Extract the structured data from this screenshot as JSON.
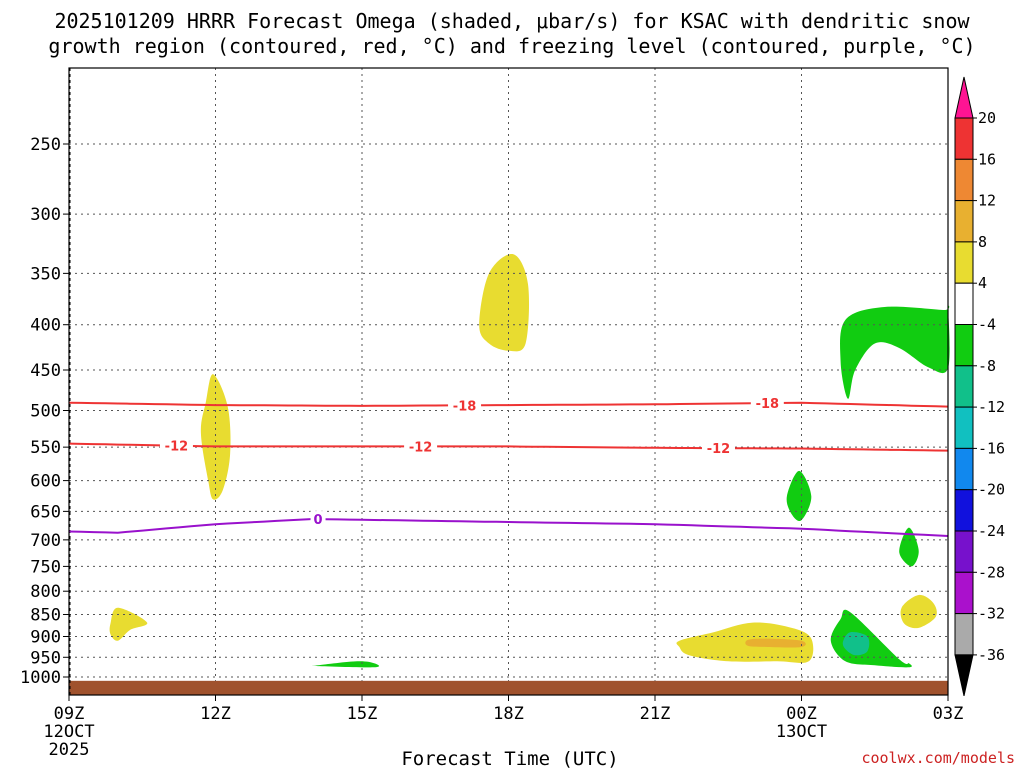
{
  "chart_data": {
    "type": "heatmap",
    "title_line1": "2025101209 HRRR Forecast Omega (shaded, μbar/s) for KSAC with dendritic snow",
    "title_line2": "growth region (contoured, red, °C) and freezing level (contoured, purple, °C)",
    "xlabel": "Forecast Time (UTC)",
    "ylabel": "",
    "credit": "coolwx.com/models",
    "x_range_hours": [
      0,
      18
    ],
    "y_range_hPa": [
      1030,
      200
    ],
    "y_scale": "log",
    "x_ticks": [
      {
        "hour": 0,
        "label": "09Z",
        "sub1": "12OCT",
        "sub2": "2025"
      },
      {
        "hour": 3,
        "label": "12Z",
        "sub1": "",
        "sub2": ""
      },
      {
        "hour": 6,
        "label": "15Z",
        "sub1": "",
        "sub2": ""
      },
      {
        "hour": 9,
        "label": "18Z",
        "sub1": "",
        "sub2": ""
      },
      {
        "hour": 12,
        "label": "21Z",
        "sub1": "",
        "sub2": ""
      },
      {
        "hour": 15,
        "label": "00Z",
        "sub1": "13OCT",
        "sub2": ""
      },
      {
        "hour": 18,
        "label": "03Z",
        "sub1": "",
        "sub2": ""
      }
    ],
    "y_ticks": [
      250,
      300,
      350,
      400,
      450,
      500,
      550,
      600,
      650,
      700,
      750,
      800,
      850,
      900,
      950,
      1000
    ],
    "surface_pressure_hPa": 1010,
    "colorbar": {
      "levels": [
        "20",
        "16",
        "12",
        "8",
        "4",
        "-4",
        "-8",
        "-12",
        "-16",
        "-20",
        "-24",
        "-28",
        "-32",
        "-36"
      ],
      "colors": [
        "#ff1493",
        "#ee3333",
        "#ee8833",
        "#e8b030",
        "#e8dc30",
        "#ffffff",
        "#11cc11",
        "#11c08a",
        "#11c0c0",
        "#1188ee",
        "#1111dd",
        "#7711cc",
        "#aa11cc",
        "#aaaaaa",
        "#000000"
      ]
    },
    "omega_regions": [
      {
        "name": "upper-yellow-cell",
        "value_range": "4 to 8",
        "color": "#e8dc30",
        "points": [
          [
            8.4,
            400
          ],
          [
            8.6,
            350
          ],
          [
            9.1,
            333
          ],
          [
            9.4,
            360
          ],
          [
            9.35,
            420
          ],
          [
            9.0,
            428
          ],
          [
            8.6,
            420
          ]
        ]
      },
      {
        "name": "mid-yellow-cell",
        "value_range": "4 to 8",
        "color": "#e8dc30",
        "points": [
          [
            2.85,
            600
          ],
          [
            2.7,
            530
          ],
          [
            2.8,
            490
          ],
          [
            2.95,
            455
          ],
          [
            3.25,
            495
          ],
          [
            3.3,
            560
          ],
          [
            3.15,
            615
          ],
          [
            2.95,
            630
          ]
        ]
      },
      {
        "name": "low-yellow-cell-left",
        "value_range": "4 to 8",
        "color": "#e8dc30",
        "points": [
          [
            0.85,
            870
          ],
          [
            1.0,
            835
          ],
          [
            1.6,
            868
          ],
          [
            1.25,
            885
          ],
          [
            1.0,
            910
          ],
          [
            0.85,
            895
          ]
        ]
      },
      {
        "name": "green-cell-15z",
        "value_range": "-4 to -8",
        "color": "#11cc11",
        "points": [
          [
            5.1,
            970
          ],
          [
            5.9,
            960
          ],
          [
            6.25,
            965
          ],
          [
            6.25,
            975
          ],
          [
            5.1,
            972
          ]
        ]
      },
      {
        "name": "low-yellow-cell-right",
        "value_range": "4 to 8",
        "color": "#e8dc30",
        "points": [
          [
            12.5,
            910
          ],
          [
            13.2,
            890
          ],
          [
            14.0,
            868
          ],
          [
            14.8,
            880
          ],
          [
            15.2,
            905
          ],
          [
            15.15,
            960
          ],
          [
            14.5,
            960
          ],
          [
            13.5,
            960
          ],
          [
            12.7,
            945
          ],
          [
            12.5,
            925
          ]
        ]
      },
      {
        "name": "orange-core",
        "value_range": "8 to 12",
        "color": "#e8b030",
        "points": [
          [
            13.9,
            908
          ],
          [
            14.3,
            905
          ],
          [
            15.0,
            910
          ],
          [
            15.0,
            925
          ],
          [
            14.3,
            925
          ],
          [
            13.9,
            922
          ]
        ]
      },
      {
        "name": "upper-green-cell",
        "value_range": "-4 to -8",
        "color": "#11cc11",
        "points": [
          [
            15.9,
            395
          ],
          [
            16.7,
            382
          ],
          [
            17.9,
            385
          ],
          [
            18.0,
            385
          ],
          [
            18.0,
            448
          ],
          [
            17.6,
            447
          ],
          [
            17.0,
            425
          ],
          [
            16.5,
            420
          ],
          [
            16.1,
            450
          ],
          [
            15.95,
            485
          ],
          [
            15.8,
            440
          ]
        ]
      },
      {
        "name": "green-cell-00z",
        "value_range": "-4 to -8",
        "color": "#11cc11",
        "points": [
          [
            14.7,
            625
          ],
          [
            14.95,
            585
          ],
          [
            15.2,
            625
          ],
          [
            15.0,
            665
          ],
          [
            14.8,
            655
          ]
        ]
      },
      {
        "name": "small-green-cell",
        "value_range": "-4 to -8",
        "color": "#11cc11",
        "points": [
          [
            17.0,
            722
          ],
          [
            17.2,
            678
          ],
          [
            17.4,
            720
          ],
          [
            17.25,
            750
          ]
        ]
      },
      {
        "name": "small-yellow-cell",
        "value_range": "4 to 8",
        "color": "#e8dc30",
        "points": [
          [
            17.05,
            835
          ],
          [
            17.4,
            808
          ],
          [
            17.7,
            825
          ],
          [
            17.75,
            855
          ],
          [
            17.4,
            880
          ],
          [
            17.1,
            870
          ]
        ]
      },
      {
        "name": "lower-green-cell",
        "value_range": "-4 to -8",
        "color": "#11cc11",
        "points": [
          [
            15.6,
            910
          ],
          [
            15.8,
            860
          ],
          [
            16.0,
            845
          ],
          [
            17.0,
            955
          ],
          [
            17.2,
            965
          ],
          [
            17.2,
            975
          ],
          [
            16.5,
            970
          ],
          [
            15.9,
            960
          ]
        ]
      },
      {
        "name": "teal-core",
        "value_range": "-8 to -12",
        "color": "#11c08a",
        "points": [
          [
            15.85,
            912
          ],
          [
            16.0,
            890
          ],
          [
            16.35,
            900
          ],
          [
            16.35,
            935
          ],
          [
            16.1,
            945
          ],
          [
            15.9,
            930
          ]
        ]
      }
    ],
    "contours": [
      {
        "name": "dgz-minus-18",
        "label": "-18",
        "color": "#ee3333",
        "points": [
          [
            0,
            490
          ],
          [
            3,
            493
          ],
          [
            6,
            494
          ],
          [
            9,
            493
          ],
          [
            12,
            492
          ],
          [
            15,
            490
          ],
          [
            18,
            495
          ]
        ],
        "label_hours": [
          8.1,
          14.3
        ]
      },
      {
        "name": "dgz-minus-12",
        "label": "-12",
        "color": "#ee3333",
        "points": [
          [
            0,
            545
          ],
          [
            3,
            549
          ],
          [
            6,
            549
          ],
          [
            9,
            549
          ],
          [
            12,
            551
          ],
          [
            15,
            552
          ],
          [
            18,
            555
          ]
        ],
        "label_hours": [
          2.2,
          7.2,
          13.3
        ]
      },
      {
        "name": "freezing-level-0",
        "label": "0",
        "color": "#9911cc",
        "points": [
          [
            0,
            685
          ],
          [
            1,
            687
          ],
          [
            3,
            672
          ],
          [
            5,
            663
          ],
          [
            8,
            667
          ],
          [
            12,
            672
          ],
          [
            15,
            680
          ],
          [
            18,
            693
          ]
        ],
        "label_hours": [
          5.1
        ]
      }
    ]
  }
}
